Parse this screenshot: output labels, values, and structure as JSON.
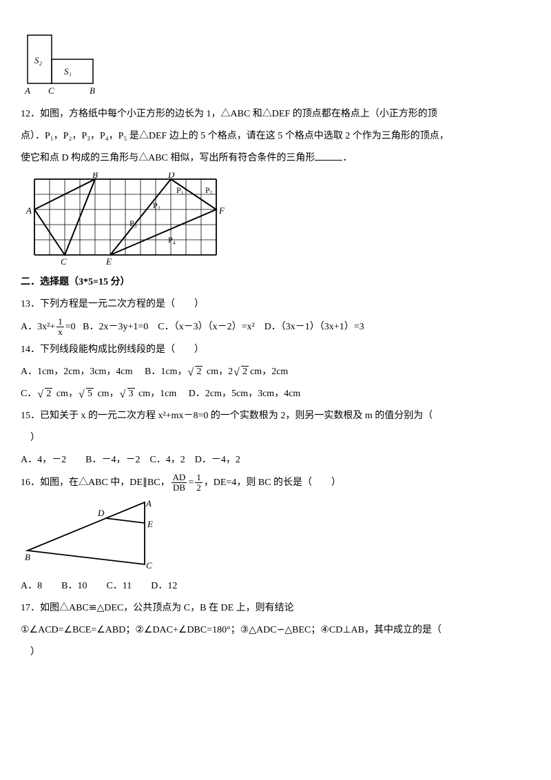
{
  "fig11": {
    "labels": {
      "S2": "S₂",
      "S1": "S₁",
      "A": "A",
      "C": "C",
      "B": "B"
    },
    "stroke": "#000000",
    "bg": "#ffffff"
  },
  "q12": {
    "num": "12．",
    "text_a": "如图，方格纸中每个小正方形的边长为 1，△ABC 和△DEF 的顶点都在格点上（小正方形的顶",
    "text_b": "点）．P₁，P₂，P₃，P₄，P₅ 是△DEF 边上的 5 个格点，请在这 5 个格点中选取 2 个作为三角形的顶点，",
    "text_c": "使它和点 D 构成的三角形与△ABC 相似，写出所有符合条件的三角形",
    "text_d": "．",
    "grid": {
      "cols": 12,
      "rows": 5,
      "cell": 22,
      "stroke": "#000",
      "thin": "#000",
      "labels": {
        "A": "A",
        "B": "B",
        "C": "C",
        "D": "D",
        "E": "E",
        "F": "F",
        "P1": "P₁",
        "P2": "P₂",
        "P3": "P₃",
        "P4": "P₄",
        "P5": "P₅"
      }
    }
  },
  "section2": {
    "title": "二．选择题（3*5=15 分）"
  },
  "q13": {
    "num": "13．",
    "text": "下列方程是一元二次方程的是（　　）",
    "optA_pre": "A．3x²+",
    "optA_post": "=0",
    "optB": "B．2x－3y+1=0",
    "optC": "C．（x－3）（x－2）=x²",
    "optD": "D．（3x－1）（3x+1）=3",
    "frac": {
      "num": "1",
      "den": "x"
    }
  },
  "q14": {
    "num": "14．",
    "text": "下列线段能构成比例线段的是（　　）",
    "A_pre": "A．1cm，2cm，3cm，4cm",
    "B_pre": "B．1cm，",
    "B_mid": " cm，2",
    "B_post": "cm，2cm",
    "C_pre": "C．",
    "C_mid1": " cm，",
    "C_mid2": " cm，",
    "C_mid3": " cm，1cm",
    "D": "D．2cm，5cm，3cm，4cm",
    "r2": "2",
    "r5": "5",
    "r3": "3"
  },
  "q15": {
    "num": "15．",
    "text_a": "已知关于 x 的一元二次方程 x²+mx－8=0 的一个实数根为 2，则另一实数根及 m 的值分别为（　",
    "text_b": "　）",
    "opts": "A．4，－2　　B．－4，－2　C．4，2　D．－4，2"
  },
  "q16": {
    "num": "16．",
    "text_a": "如图，在△ABC 中，DE∥BC，",
    "text_b": "，DE=4，则 BC 的长是（　　）",
    "frac1": {
      "num": "AD",
      "den": "DB"
    },
    "eq": "=",
    "frac2": {
      "num": "1",
      "den": "2"
    },
    "opts": "A．8　　B．10　　C．11　　D．12",
    "fig": {
      "stroke": "#000",
      "labels": {
        "A": "A",
        "B": "B",
        "C": "C",
        "D": "D",
        "E": "E"
      }
    }
  },
  "q17": {
    "num": "17．",
    "text_a": "如图△ABC≌△DEC，公共顶点为 C，B 在 DE 上，则有结论",
    "text_b": "①∠ACD=∠BCE=∠ABD；②∠DAC+∠DBC=180°；③△ADC∽△BEC；④CD⊥AB，其中成立的是（　",
    "text_c": "　）"
  }
}
